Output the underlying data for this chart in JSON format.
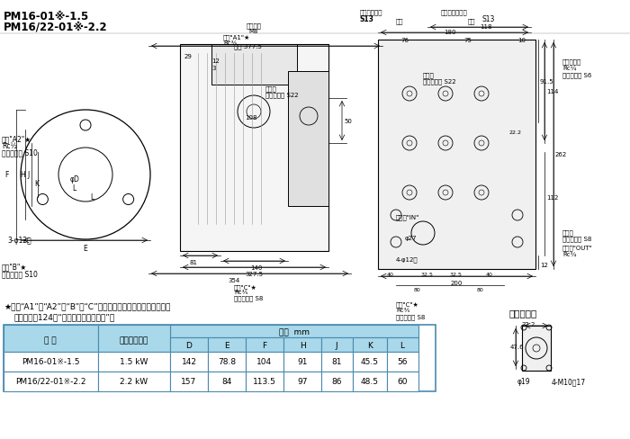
{
  "title_line1": "PM16-01※-1.5",
  "title_line2": "PM16/22-01※-2.2",
  "bg_color": "#ffffff",
  "table_header_color": "#a8d8ea",
  "table_row_color": "#ffffff",
  "table_alt_color": "#e8f4f8",
  "table_border_color": "#4a8aaf",
  "note_star_color": "#000000",
  "col_headers": [
    "型 号",
    "电机输出功率",
    "D",
    "E",
    "F",
    "H",
    "J",
    "K",
    "L"
  ],
  "dim_header": "尺寸  mm",
  "row1": [
    "PM16-01※-1.5",
    "1.5 kW",
    "142",
    "78.8",
    "104",
    "91",
    "81",
    "45.5",
    "56"
  ],
  "row2": [
    "PM16/22-01※-2.2",
    "2.2 kW",
    "157",
    "84",
    "113.5",
    "97",
    "86",
    "48.5",
    "60"
  ],
  "note_line1": "★接口“A1”、“A2”、“B”、“C”按安装姿势不同使用目的也不同。",
  "note_line2": "详情请参见124页“电机泵使用注意事项”。",
  "suction_title": "吸入口详情"
}
